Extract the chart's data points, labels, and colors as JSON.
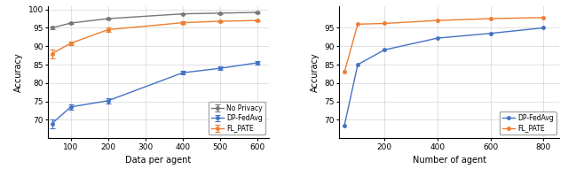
{
  "left": {
    "xlabel": "Data per agent",
    "ylabel": "Accuracy",
    "ylim": [
      65,
      101
    ],
    "yticks": [
      70,
      75,
      80,
      85,
      90,
      95,
      100
    ],
    "xticks": [
      100,
      200,
      300,
      400,
      500,
      600
    ],
    "xlim": [
      40,
      630
    ],
    "no_privacy": {
      "x": [
        50,
        100,
        200,
        400,
        500,
        600
      ],
      "y": [
        95.0,
        96.3,
        97.5,
        98.8,
        99.0,
        99.2
      ],
      "yerr": [
        0.3,
        0.3,
        0.3,
        0.2,
        0.2,
        0.2
      ],
      "color": "#777777",
      "label": "No Privacy"
    },
    "dp_fedavg": {
      "x": [
        50,
        100,
        200,
        400,
        500,
        600
      ],
      "y": [
        69.0,
        73.5,
        75.2,
        82.8,
        84.0,
        85.5
      ],
      "yerr": [
        1.2,
        0.8,
        0.7,
        0.5,
        0.5,
        0.5
      ],
      "color": "#4472c4",
      "label": "DP-FedAvg"
    },
    "fl_pate": {
      "x": [
        50,
        100,
        200,
        400,
        500,
        600
      ],
      "y": [
        88.0,
        90.8,
        94.5,
        96.4,
        96.8,
        97.0
      ],
      "yerr": [
        1.2,
        0.5,
        0.5,
        0.4,
        0.3,
        0.3
      ],
      "color": "#ed7d31",
      "label": "FL_PATE"
    }
  },
  "right": {
    "xlabel": "Number of agent",
    "ylabel": "Accuracy",
    "ylim": [
      65,
      101
    ],
    "yticks": [
      70,
      75,
      80,
      85,
      90,
      95
    ],
    "xticks": [
      200,
      400,
      600,
      800
    ],
    "xlim": [
      30,
      860
    ],
    "dp_fedavg": {
      "x": [
        50,
        100,
        200,
        400,
        600,
        800
      ],
      "y": [
        68.5,
        85.0,
        89.0,
        92.2,
        93.5,
        95.0
      ],
      "color": "#4472c4",
      "label": "DP-FedAvg"
    },
    "fl_pate": {
      "x": [
        50,
        100,
        200,
        400,
        600,
        800
      ],
      "y": [
        83.0,
        96.0,
        96.2,
        97.0,
        97.5,
        97.8
      ],
      "color": "#ed7d31",
      "label": "FL_PATE"
    }
  }
}
